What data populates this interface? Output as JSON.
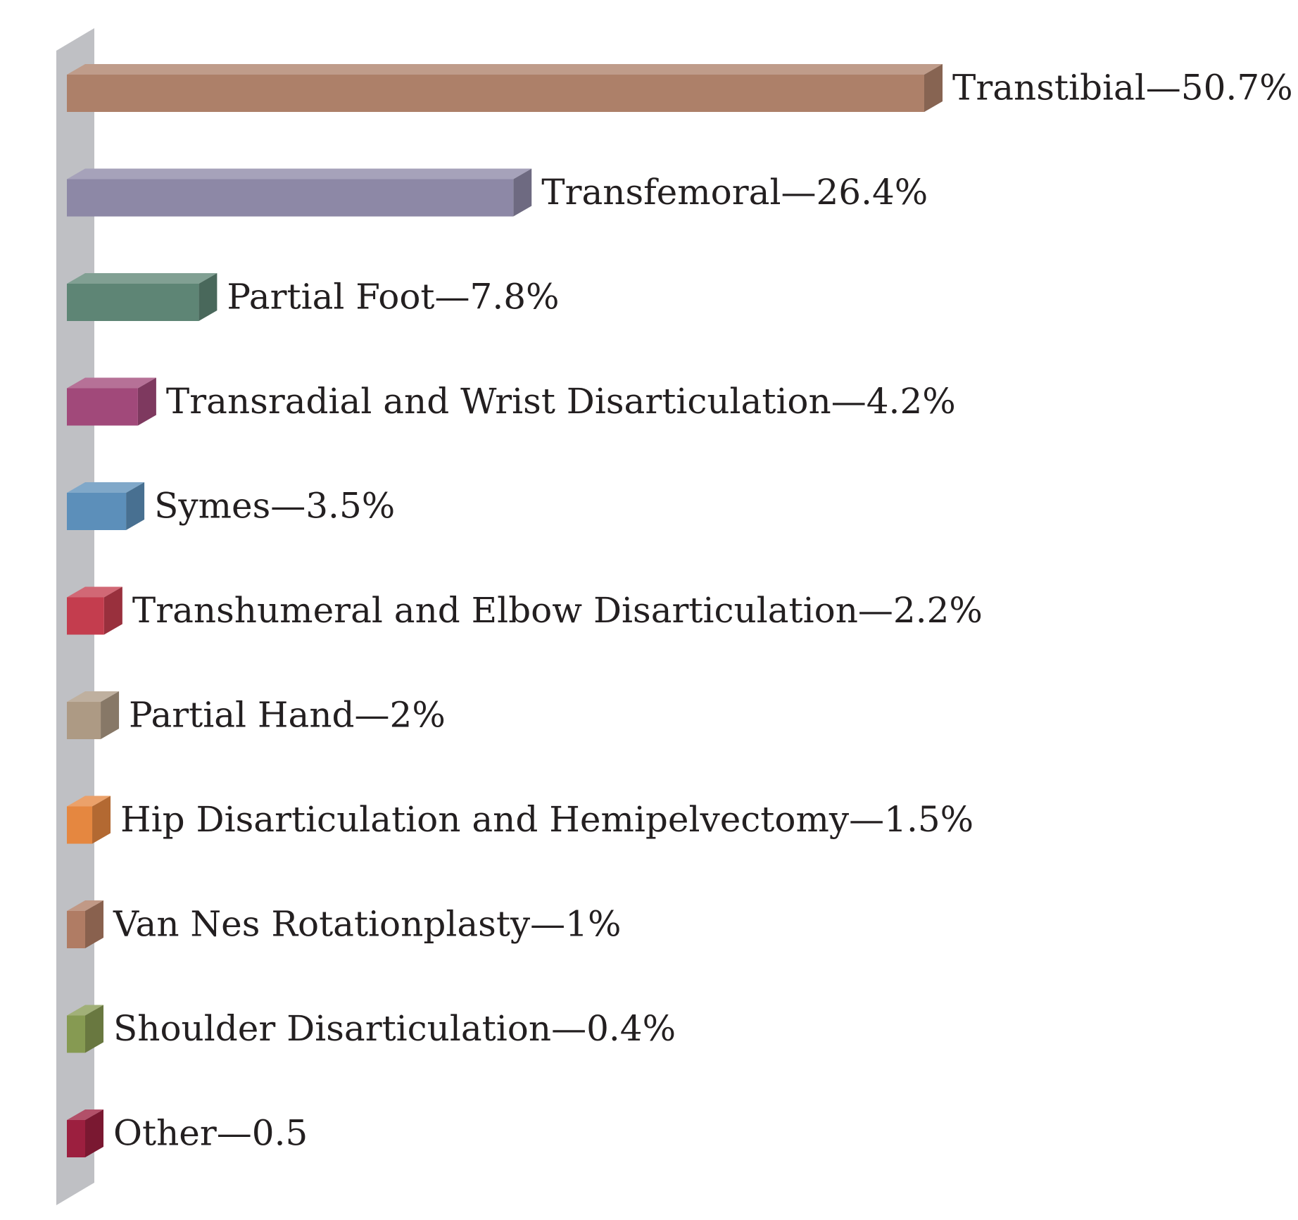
{
  "chart_data": {
    "type": "bar",
    "orientation": "horizontal",
    "style": "3d",
    "title": "",
    "xlabel": "",
    "ylabel": "",
    "xlim": [
      0,
      50.7
    ],
    "grid": false,
    "legend": "none",
    "bars": [
      {
        "category": "Transtibial",
        "value": 50.7,
        "label": "Transtibial—50.7%",
        "color": "#ad8069"
      },
      {
        "category": "Transfemoral",
        "value": 26.4,
        "label": "Transfemoral—26.4%",
        "color": "#8d88a6"
      },
      {
        "category": "Partial Foot",
        "value": 7.8,
        "label": "Partial Foot—7.8%",
        "color": "#5e8575"
      },
      {
        "category": "Transradial and Wrist Disarticulation",
        "value": 4.2,
        "label": "Transradial and Wrist Disarticulation—4.2%",
        "color": "#a1497a"
      },
      {
        "category": "Symes",
        "value": 3.5,
        "label": "Symes—3.5%",
        "color": "#5c8fba"
      },
      {
        "category": "Transhumeral and Elbow Disarticulation",
        "value": 2.2,
        "label": "Transhumeral and Elbow Disarticulation—2.2%",
        "color": "#c43d4e"
      },
      {
        "category": "Partial Hand",
        "value": 2,
        "label": "Partial Hand—2%",
        "color": "#ad9a84"
      },
      {
        "category": "Hip Disarticulation and Hemipelvectomy",
        "value": 1.5,
        "label": "Hip Disarticulation and Hemipelvectomy—1.5%",
        "color": "#e58740"
      },
      {
        "category": "Van Nes Rotationplasty",
        "value": 1,
        "label": "Van Nes Rotationplasty—1%",
        "color": "#b07c64"
      },
      {
        "category": "Shoulder Disarticulation",
        "value": 0.4,
        "label": "Shoulder Disarticulation—0.4%",
        "color": "#869a52"
      },
      {
        "category": "Other",
        "value": 0.5,
        "label": "Other—0.5",
        "color": "#9c1f3f"
      }
    ],
    "axis_color": "#bfc0c4",
    "text_color": "#231f20"
  }
}
